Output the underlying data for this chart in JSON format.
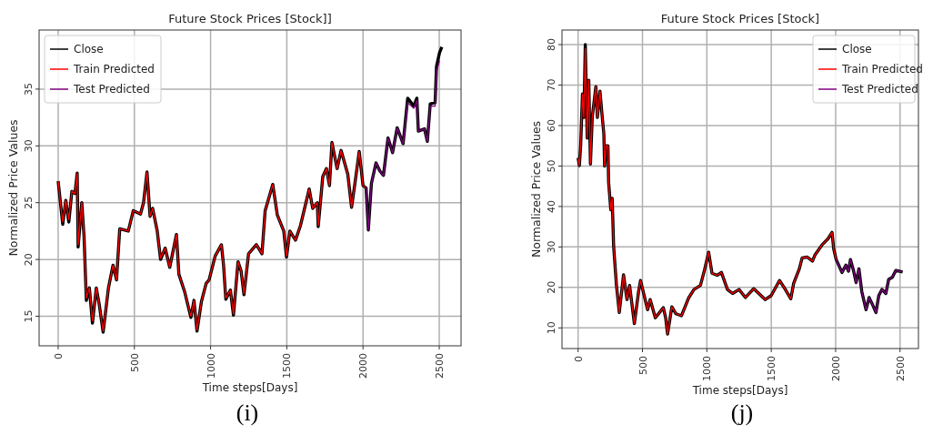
{
  "chart_data": [
    {
      "type": "line",
      "title": "Future Stock Prices [Stock]]",
      "xlabel": "Time steps[Days]",
      "ylabel": "Normalized Price Values",
      "annotations": [
        "(i)"
      ],
      "xlim": [
        -125,
        2643
      ],
      "ylim": [
        12.4,
        40.2
      ],
      "xticks": [
        0,
        500,
        1000,
        1500,
        2000,
        2500
      ],
      "yticks": [
        15,
        20,
        25,
        30,
        35
      ],
      "grid": true,
      "legend": "top left",
      "series": [
        {
          "name": "Close",
          "color": "#000000",
          "x": [
            0,
            15,
            30,
            50,
            70,
            90,
            110,
            125,
            131,
            155,
            170,
            185,
            205,
            225,
            250,
            270,
            295,
            330,
            360,
            383,
            404,
            460,
            493,
            540,
            560,
            583,
            603,
            620,
            650,
            672,
            702,
            732,
            776,
            792,
            831,
            871,
            891,
            911,
            940,
            971,
            990,
            1030,
            1071,
            1085,
            1100,
            1130,
            1150,
            1180,
            1200,
            1219,
            1249,
            1300,
            1337,
            1358,
            1408,
            1438,
            1480,
            1498,
            1520,
            1557,
            1590,
            1647,
            1670,
            1700,
            1706,
            1736,
            1760,
            1780,
            1796,
            1830,
            1856,
            1900,
            1925,
            1950,
            1975,
            2000,
            2020,
            2035,
            2055,
            2085,
            2110,
            2134,
            2164,
            2194,
            2224,
            2263,
            2293,
            2333,
            2353,
            2363,
            2403,
            2422,
            2441,
            2473,
            2482,
            2502,
            2517
          ],
          "values": [
            26.9,
            25.0,
            23.1,
            25.2,
            23.3,
            26.0,
            25.8,
            27.6,
            21.1,
            25.0,
            22.0,
            16.4,
            17.5,
            14.4,
            17.5,
            16.0,
            13.6,
            17.5,
            19.5,
            18.2,
            22.7,
            22.5,
            24.3,
            24.0,
            25.0,
            27.7,
            23.8,
            24.5,
            22.5,
            20.0,
            21.0,
            19.3,
            22.2,
            18.7,
            17.1,
            14.9,
            16.4,
            13.7,
            16.3,
            17.9,
            18.2,
            20.3,
            21.3,
            19.5,
            16.5,
            17.3,
            15.1,
            19.8,
            19.0,
            16.9,
            20.5,
            21.3,
            20.5,
            24.3,
            26.6,
            23.9,
            22.5,
            20.2,
            22.5,
            21.7,
            23.0,
            26.2,
            24.5,
            25.0,
            22.9,
            27.3,
            28.0,
            26.5,
            30.3,
            28.0,
            29.6,
            27.5,
            24.6,
            27.0,
            29.5,
            26.5,
            26.3,
            22.6,
            26.7,
            28.5,
            27.8,
            27.4,
            30.7,
            29.4,
            31.6,
            30.2,
            34.2,
            33.5,
            34.2,
            31.3,
            31.5,
            30.4,
            33.7,
            33.8,
            37.0,
            38.2,
            38.7
          ]
        },
        {
          "name": "Train Predicted",
          "color": "#ff0000",
          "x": [
            0,
            15,
            30,
            50,
            70,
            90,
            110,
            125,
            131,
            155,
            170,
            185,
            205,
            225,
            250,
            270,
            295,
            330,
            360,
            383,
            404,
            460,
            493,
            540,
            560,
            583,
            603,
            620,
            650,
            672,
            702,
            732,
            776,
            792,
            831,
            871,
            891,
            911,
            940,
            971,
            990,
            1030,
            1071,
            1085,
            1100,
            1130,
            1150,
            1180,
            1200,
            1219,
            1249,
            1300,
            1337,
            1358,
            1408,
            1438,
            1480,
            1498,
            1520,
            1557,
            1590,
            1647,
            1670,
            1700,
            1706,
            1736,
            1760,
            1780,
            1796,
            1830,
            1856,
            1900,
            1925,
            1950,
            1975,
            2000,
            2020
          ],
          "values": [
            26.9,
            25.0,
            23.3,
            25.2,
            23.5,
            26.0,
            25.8,
            27.6,
            21.3,
            25.0,
            22.0,
            16.6,
            17.5,
            14.6,
            17.5,
            16.0,
            13.7,
            17.5,
            19.5,
            18.2,
            22.7,
            22.5,
            24.3,
            24.0,
            25.0,
            27.7,
            23.8,
            24.5,
            22.5,
            20.1,
            21.0,
            19.3,
            22.2,
            18.7,
            17.1,
            15.0,
            16.4,
            13.8,
            16.3,
            17.9,
            18.2,
            20.3,
            21.3,
            19.5,
            16.6,
            17.3,
            15.2,
            19.8,
            19.0,
            17.0,
            20.5,
            21.3,
            20.5,
            24.3,
            26.6,
            23.9,
            22.5,
            20.3,
            22.5,
            21.7,
            23.0,
            26.2,
            24.5,
            25.0,
            23.0,
            27.3,
            28.0,
            26.5,
            30.3,
            28.0,
            29.6,
            27.5,
            24.6,
            27.0,
            29.5,
            26.5,
            26.3
          ]
        },
        {
          "name": "Test Predicted",
          "color": "#800080",
          "x": [
            2020,
            2035,
            2055,
            2085,
            2110,
            2134,
            2164,
            2194,
            2224,
            2263,
            2293,
            2333,
            2353,
            2363,
            2403,
            2422,
            2441,
            2473,
            2482,
            2502
          ],
          "values": [
            26.3,
            22.6,
            26.7,
            28.5,
            27.8,
            27.4,
            30.7,
            29.4,
            31.6,
            30.2,
            33.8,
            33.3,
            34.0,
            31.3,
            31.5,
            30.4,
            33.5,
            33.5,
            36.5,
            37.5
          ]
        }
      ]
    },
    {
      "type": "line",
      "title": "Future Stock Prices [Stock]",
      "xlabel": "Time steps[Days]",
      "ylabel": "Normalized Price Values",
      "annotations": [
        "(j)"
      ],
      "xlim": [
        -125,
        2643
      ],
      "ylim": [
        4.9,
        83.6
      ],
      "xticks": [
        0,
        500,
        1000,
        1500,
        2000,
        2500
      ],
      "yticks": [
        10,
        20,
        30,
        40,
        50,
        60,
        70,
        80
      ],
      "grid": true,
      "legend": "top right",
      "series": [
        {
          "name": "Close",
          "color": "#000000",
          "x": [
            0,
            10,
            20,
            34,
            45,
            56,
            71,
            83,
            96,
            110,
            138,
            150,
            170,
            185,
            200,
            206,
            220,
            232,
            237,
            254,
            265,
            276,
            298,
            320,
            342,
            353,
            380,
            400,
            437,
            470,
            485,
            540,
            560,
            600,
            662,
            680,
            695,
            728,
            760,
            803,
            860,
            900,
            950,
            981,
            1014,
            1040,
            1080,
            1113,
            1160,
            1200,
            1250,
            1300,
            1364,
            1420,
            1454,
            1500,
            1564,
            1600,
            1652,
            1674,
            1718,
            1740,
            1780,
            1820,
            1839,
            1894,
            1940,
            1972,
            1985,
            2004,
            2049,
            2080,
            2100,
            2115,
            2140,
            2159,
            2181,
            2203,
            2236,
            2260,
            2290,
            2313,
            2335,
            2360,
            2390,
            2412,
            2440,
            2467,
            2520
          ],
          "values": [
            52,
            50.1,
            55,
            67.8,
            62,
            80,
            56.9,
            71.2,
            50.5,
            62,
            69.6,
            62,
            68.5,
            63,
            58,
            50,
            55,
            55,
            46,
            39.2,
            42,
            30.2,
            20.5,
            13.8,
            20,
            23.1,
            17,
            20.5,
            11.1,
            19,
            21.7,
            14.5,
            17,
            12.5,
            15,
            12.5,
            8.5,
            15.2,
            13.5,
            13,
            17.5,
            19.5,
            20.5,
            24.2,
            28.7,
            23.5,
            23,
            23.7,
            19.5,
            18.5,
            19.5,
            17.5,
            19.7,
            18,
            17,
            18,
            21.7,
            20,
            17.2,
            21,
            24.6,
            27.3,
            27.5,
            26.5,
            28,
            30.5,
            32,
            33.6,
            29.5,
            26.9,
            23.7,
            25.5,
            24,
            26.9,
            24,
            21.2,
            24.6,
            19,
            14.5,
            17.5,
            15.5,
            13.8,
            18,
            19.5,
            18.5,
            22,
            22.5,
            24.2,
            23.8
          ]
        },
        {
          "name": "Train Predicted",
          "color": "#ff0000",
          "x": [
            0,
            10,
            20,
            34,
            45,
            56,
            71,
            83,
            96,
            110,
            138,
            150,
            170,
            185,
            200,
            206,
            220,
            232,
            237,
            254,
            265,
            276,
            298,
            320,
            342,
            353,
            380,
            400,
            437,
            470,
            485,
            540,
            560,
            600,
            662,
            680,
            695,
            728,
            760,
            803,
            860,
            900,
            950,
            981,
            1014,
            1040,
            1080,
            1113,
            1160,
            1200,
            1250,
            1300,
            1364,
            1420,
            1454,
            1500,
            1564,
            1600,
            1652,
            1674,
            1718,
            1740,
            1780,
            1820,
            1839,
            1894,
            1940,
            1972,
            1985,
            2004
          ],
          "values": [
            52,
            50.1,
            55,
            67.8,
            62,
            79,
            56.9,
            71.2,
            50.5,
            62,
            69.6,
            62,
            68.5,
            63,
            58,
            50,
            55,
            55,
            46,
            39.2,
            42,
            30.2,
            20.5,
            13.8,
            20,
            23.1,
            17,
            20.5,
            11.1,
            19,
            21.7,
            14.5,
            17,
            12.5,
            15,
            12.5,
            8.5,
            15.2,
            13.5,
            13,
            17.5,
            19.5,
            20.5,
            24.2,
            28.7,
            23.5,
            23,
            23.7,
            19.5,
            18.5,
            19.5,
            17.5,
            19.7,
            18,
            17,
            18,
            21.7,
            20,
            17.2,
            21,
            24.6,
            27.3,
            27.5,
            26.5,
            28,
            30.5,
            32,
            33.6,
            29.5,
            26.9
          ]
        },
        {
          "name": "Test Predicted",
          "color": "#800080",
          "x": [
            2004,
            2049,
            2080,
            2100,
            2115,
            2140,
            2159,
            2181,
            2203,
            2236,
            2260,
            2290,
            2313,
            2335,
            2360,
            2390,
            2412,
            2440,
            2467,
            2520
          ],
          "values": [
            26.9,
            23.7,
            25.5,
            24,
            26.9,
            24,
            21.2,
            24.6,
            19,
            14.5,
            17.5,
            15.5,
            13.8,
            18,
            19.5,
            18.5,
            22,
            22.5,
            24.2,
            23.8
          ]
        }
      ]
    }
  ]
}
